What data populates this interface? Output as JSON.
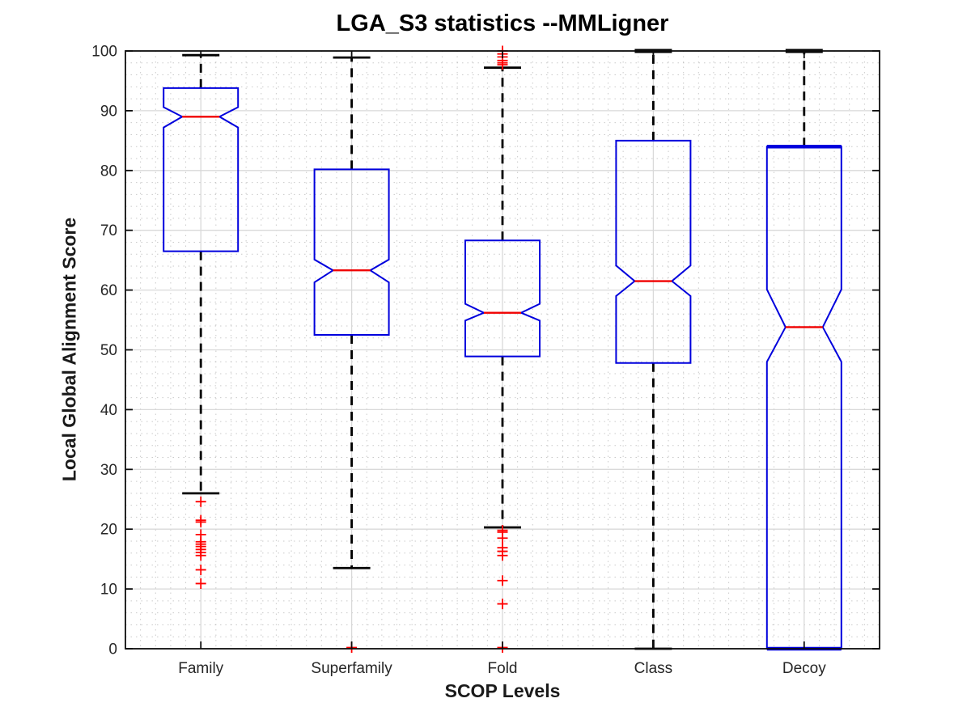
{
  "chart_data": {
    "type": "boxplot",
    "title": "LGA_S3 statistics --MMLigner",
    "xlabel": "SCOP Levels",
    "ylabel": "Local Global Alignment Score",
    "categories": [
      "Family",
      "Superfamily",
      "Fold",
      "Class",
      "Decoy"
    ],
    "ylim": [
      0,
      100
    ],
    "ytick_step": 10,
    "grid": {
      "major": true,
      "minor": true,
      "minor_y_step": 2,
      "minor_x_per_category": 10
    },
    "legend": "none",
    "colors": {
      "box": "#0000dd",
      "median": "#f00000",
      "whisker": "#000000",
      "outlier": "#ff0000",
      "major_grid": "#d9d9d9",
      "minor_grid": "#a8a8a8",
      "frame": "#0d0d0d",
      "tick_text": "#262626"
    },
    "boxes": [
      {
        "category": "Family",
        "whisker_low": 26.0,
        "q1": 66.5,
        "median": 89.0,
        "q3": 93.8,
        "whisker_high": 99.3,
        "notch_low": 87.2,
        "notch_high": 90.6,
        "outliers": [
          24.6,
          21.5,
          21.2,
          19.1,
          17.9,
          17.5,
          17.1,
          16.6,
          16.1,
          15.6,
          13.2,
          10.9
        ]
      },
      {
        "category": "Superfamily",
        "whisker_low": 13.5,
        "q1": 52.5,
        "median": 63.3,
        "q3": 80.2,
        "whisker_high": 98.9,
        "notch_low": 61.3,
        "notch_high": 65.1,
        "outliers": [
          0.2
        ]
      },
      {
        "category": "Fold",
        "whisker_low": 20.3,
        "q1": 48.9,
        "median": 56.2,
        "q3": 68.3,
        "whisker_high": 97.2,
        "notch_low": 54.9,
        "notch_high": 57.7,
        "outliers": [
          100,
          99.5,
          99.0,
          98.4,
          98.0,
          97.7,
          19.8,
          19.5,
          18.5,
          16.9,
          16.3,
          15.6,
          11.4,
          7.5,
          0.2
        ]
      },
      {
        "category": "Class",
        "whisker_low": 0,
        "q1": 47.8,
        "median": 61.5,
        "q3": 85.0,
        "whisker_high": 100,
        "notch_low": 59.0,
        "notch_high": 64.1,
        "outliers": [],
        "thick_cap_high": true
      },
      {
        "category": "Decoy",
        "whisker_low": 0,
        "q1": 0,
        "median": 53.8,
        "q3": 84.0,
        "whisker_high": 100,
        "notch_low": 48.0,
        "notch_high": 60.1,
        "outliers": [],
        "thick_cap_high": true,
        "thick_box_edges": true
      }
    ]
  }
}
